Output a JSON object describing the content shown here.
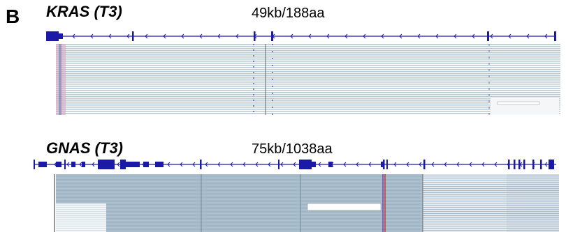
{
  "panel_label": "B",
  "tracks": [
    {
      "gene": "KRAS (T3)",
      "size": "49kb/188aa"
    },
    {
      "gene": "GNAS (T3)",
      "size": "75kb/1038aa"
    }
  ]
}
